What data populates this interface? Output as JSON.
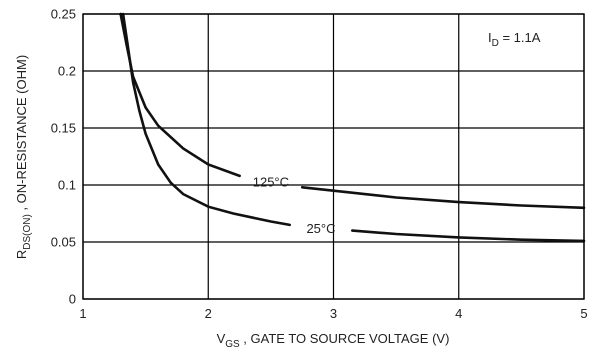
{
  "chart_data": {
    "type": "line",
    "xlabel": {
      "main": "V",
      "sub": "GS",
      "rest": " , GATE TO SOURCE VOLTAGE (V)"
    },
    "ylabel": {
      "main": "R",
      "sub": "DS(ON)",
      "rest": " , ON-RESISTANCE (OHM)"
    },
    "xlim": [
      1,
      5
    ],
    "ylim": [
      0,
      0.25
    ],
    "x_ticks": [
      {
        "value": 1,
        "label": "1"
      },
      {
        "value": 2,
        "label": "2"
      },
      {
        "value": 3,
        "label": "3"
      },
      {
        "value": 4,
        "label": "4"
      },
      {
        "value": 5,
        "label": "5"
      }
    ],
    "y_ticks": [
      {
        "value": 0,
        "label": "0"
      },
      {
        "value": 0.05,
        "label": "0.05"
      },
      {
        "value": 0.1,
        "label": "0.1"
      },
      {
        "value": 0.15,
        "label": "0.15"
      },
      {
        "value": 0.2,
        "label": "0.2"
      },
      {
        "value": 0.25,
        "label": "0.25"
      }
    ],
    "grid": true,
    "annotation": {
      "main": "I",
      "sub": "D",
      "rest": " = 1.1A"
    },
    "series": [
      {
        "name": "125°C",
        "x": [
          1.3,
          1.35,
          1.4,
          1.5,
          1.6,
          1.8,
          2.0,
          2.25,
          2.75,
          3.0,
          3.5,
          4.0,
          4.5,
          5.0
        ],
        "y": [
          0.25,
          0.222,
          0.195,
          0.168,
          0.152,
          0.132,
          0.118,
          0.108,
          0.098,
          0.095,
          0.089,
          0.085,
          0.082,
          0.08
        ]
      },
      {
        "name": "25°C",
        "x": [
          1.32,
          1.35,
          1.4,
          1.45,
          1.5,
          1.6,
          1.7,
          1.8,
          2.0,
          2.2,
          2.5,
          2.65,
          3.15,
          3.5,
          4.0,
          4.5,
          5.0
        ],
        "y": [
          0.25,
          0.228,
          0.19,
          0.165,
          0.145,
          0.118,
          0.102,
          0.092,
          0.081,
          0.075,
          0.068,
          0.065,
          0.06,
          0.057,
          0.054,
          0.052,
          0.051
        ]
      }
    ]
  }
}
